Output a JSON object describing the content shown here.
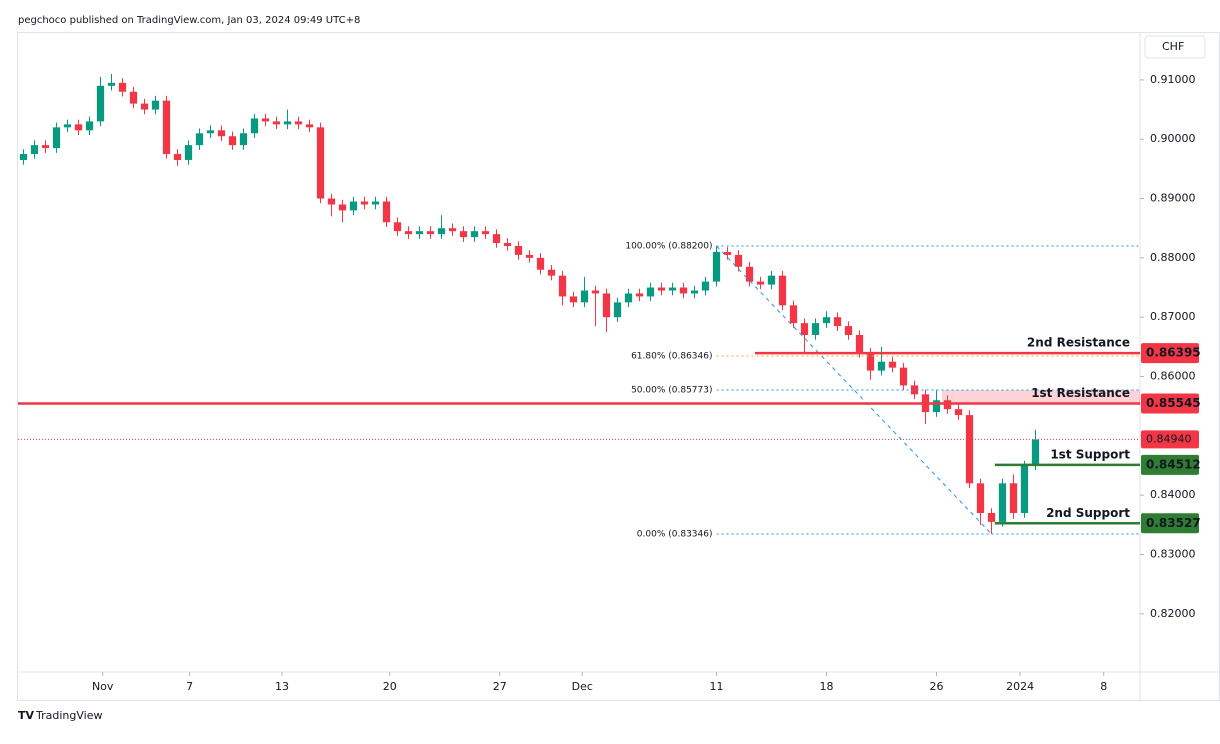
{
  "header": "pegchoco published on TradingView.com, Jan 03, 2024 09:49 UTC+8",
  "footer": "TradingView",
  "chart_data": {
    "type": "candlestick",
    "currency": "CHF",
    "up_color": "#089981",
    "down_color": "#f23645",
    "open": [
      0.8965,
      0.8975,
      0.899,
      0.8985,
      0.902,
      0.9025,
      0.9015,
      0.903,
      0.909,
      0.9095,
      0.908,
      0.906,
      0.905,
      0.9065,
      0.8975,
      0.8965,
      0.899,
      0.901,
      0.9015,
      0.9005,
      0.899,
      0.901,
      0.9035,
      0.903,
      0.9025,
      0.903,
      0.9025,
      0.902,
      0.89,
      0.889,
      0.888,
      0.8895,
      0.889,
      0.8895,
      0.886,
      0.8845,
      0.884,
      0.8845,
      0.884,
      0.885,
      0.8845,
      0.8835,
      0.8845,
      0.884,
      0.8825,
      0.882,
      0.8805,
      0.88,
      0.878,
      0.877,
      0.8735,
      0.8725,
      0.8745,
      0.874,
      0.87,
      0.8725,
      0.874,
      0.8735,
      0.875,
      0.8745,
      0.875,
      0.874,
      0.8745,
      0.876,
      0.881,
      0.8805,
      0.8785,
      0.876,
      0.8755,
      0.877,
      0.872,
      0.869,
      0.867,
      0.869,
      0.87,
      0.8685,
      0.867,
      0.864,
      0.861,
      0.8625,
      0.8615,
      0.8585,
      0.857,
      0.854,
      0.856,
      0.8545,
      0.8535,
      0.842,
      0.837,
      0.8355,
      0.842,
      0.837,
      0.845
    ],
    "high": [
      0.8983,
      0.8998,
      0.8998,
      0.9028,
      0.9033,
      0.9033,
      0.9038,
      0.9105,
      0.911,
      0.9103,
      0.9088,
      0.9068,
      0.9073,
      0.9073,
      0.8983,
      0.8998,
      0.9018,
      0.9023,
      0.9023,
      0.9013,
      0.9018,
      0.9043,
      0.9043,
      0.9038,
      0.905,
      0.9038,
      0.9033,
      0.9028,
      0.8908,
      0.8898,
      0.8903,
      0.8903,
      0.8903,
      0.8903,
      0.8868,
      0.8853,
      0.8853,
      0.8853,
      0.8872,
      0.8858,
      0.8853,
      0.8853,
      0.8853,
      0.8848,
      0.8833,
      0.8828,
      0.8813,
      0.8808,
      0.8788,
      0.8778,
      0.8743,
      0.8768,
      0.8753,
      0.8748,
      0.8733,
      0.8748,
      0.8748,
      0.8758,
      0.8758,
      0.8758,
      0.8758,
      0.8753,
      0.8768,
      0.882,
      0.8818,
      0.8813,
      0.8793,
      0.8768,
      0.8778,
      0.8778,
      0.8728,
      0.8698,
      0.8698,
      0.871,
      0.8708,
      0.8693,
      0.8678,
      0.8648,
      0.865,
      0.8633,
      0.8623,
      0.8593,
      0.8578,
      0.8577,
      0.8568,
      0.8553,
      0.8543,
      0.8428,
      0.8378,
      0.8428,
      0.8435,
      0.8458,
      0.851
    ],
    "low": [
      0.8957,
      0.8967,
      0.8977,
      0.8977,
      0.9012,
      0.9007,
      0.9007,
      0.9022,
      0.9082,
      0.9072,
      0.9052,
      0.9042,
      0.9042,
      0.8967,
      0.8955,
      0.8957,
      0.8982,
      0.9002,
      0.8997,
      0.8982,
      0.8982,
      0.9002,
      0.9022,
      0.9017,
      0.9017,
      0.9017,
      0.9012,
      0.8892,
      0.887,
      0.886,
      0.8872,
      0.8882,
      0.8882,
      0.8852,
      0.8837,
      0.8832,
      0.8832,
      0.8832,
      0.8832,
      0.8837,
      0.8827,
      0.8827,
      0.8832,
      0.8817,
      0.8812,
      0.8797,
      0.8792,
      0.8772,
      0.8762,
      0.872,
      0.8717,
      0.8717,
      0.8685,
      0.8675,
      0.8692,
      0.8717,
      0.8727,
      0.8727,
      0.8737,
      0.8737,
      0.8732,
      0.8732,
      0.8737,
      0.8752,
      0.8797,
      0.8777,
      0.8752,
      0.8747,
      0.8747,
      0.8712,
      0.8682,
      0.864,
      0.8662,
      0.8682,
      0.8677,
      0.8662,
      0.8632,
      0.8595,
      0.8602,
      0.8607,
      0.8577,
      0.8562,
      0.852,
      0.8532,
      0.8537,
      0.8527,
      0.8412,
      0.835,
      0.8335,
      0.8347,
      0.836,
      0.8362,
      0.8442
    ],
    "close": [
      0.8975,
      0.899,
      0.8985,
      0.902,
      0.9025,
      0.9015,
      0.903,
      0.909,
      0.9095,
      0.908,
      0.906,
      0.905,
      0.9065,
      0.8975,
      0.8965,
      0.899,
      0.901,
      0.9015,
      0.9005,
      0.899,
      0.901,
      0.9035,
      0.903,
      0.9025,
      0.903,
      0.9025,
      0.902,
      0.89,
      0.889,
      0.888,
      0.8895,
      0.889,
      0.8895,
      0.886,
      0.8845,
      0.884,
      0.8845,
      0.884,
      0.885,
      0.8845,
      0.8835,
      0.8845,
      0.884,
      0.8825,
      0.882,
      0.8805,
      0.88,
      0.878,
      0.877,
      0.8735,
      0.8725,
      0.8745,
      0.874,
      0.87,
      0.8725,
      0.874,
      0.8735,
      0.875,
      0.8745,
      0.875,
      0.874,
      0.8745,
      0.876,
      0.881,
      0.8805,
      0.8785,
      0.876,
      0.8755,
      0.877,
      0.872,
      0.869,
      0.867,
      0.869,
      0.87,
      0.8685,
      0.867,
      0.864,
      0.861,
      0.8625,
      0.8615,
      0.8585,
      0.857,
      0.854,
      0.856,
      0.8545,
      0.8535,
      0.842,
      0.837,
      0.8355,
      0.842,
      0.837,
      0.845,
      0.8494
    ],
    "xlim": [
      -0.5,
      101.5
    ],
    "xticks": [
      {
        "value": 7.2,
        "label": "Nov"
      },
      {
        "value": 15.1,
        "label": "7"
      },
      {
        "value": 23.5,
        "label": "13"
      },
      {
        "value": 33.3,
        "label": "20"
      },
      {
        "value": 43.3,
        "label": "27"
      },
      {
        "value": 50.8,
        "label": "Dec"
      },
      {
        "value": 63,
        "label": "11"
      },
      {
        "value": 73,
        "label": "18"
      },
      {
        "value": 83,
        "label": "26"
      },
      {
        "value": 90.6,
        "label": "2024"
      },
      {
        "value": 98.2,
        "label": "8"
      }
    ],
    "ylim": [
      0.8102,
      0.9179
    ],
    "yticks": [
      {
        "value": 0.82,
        "label": "0.82000"
      },
      {
        "value": 0.83,
        "label": "0.83000"
      },
      {
        "value": 0.84,
        "label": "0.84000"
      },
      {
        "value": 0.85,
        "label": "0.85000"
      },
      {
        "value": 0.86,
        "label": "0.86000"
      },
      {
        "value": 0.87,
        "label": "0.87000"
      },
      {
        "value": 0.88,
        "label": "0.88000"
      },
      {
        "value": 0.89,
        "label": "0.89000"
      },
      {
        "value": 0.9,
        "label": "0.90000"
      },
      {
        "value": 0.91,
        "label": "0.91000"
      }
    ],
    "levels": [
      {
        "name": "2nd Resistance",
        "value": 0.86395,
        "label": "0.86395",
        "color": "#f23645"
      },
      {
        "name": "1st Resistance",
        "value": 0.85545,
        "label": "0.85545",
        "color": "#f23645"
      },
      {
        "name": "1st Support",
        "value": 0.84512,
        "label": "0.84512",
        "color": "#2e7d32"
      },
      {
        "name": "2nd Support",
        "value": 0.83527,
        "label": "0.83527",
        "color": "#2e7d32"
      }
    ],
    "last_price": {
      "value": 0.8494,
      "label": "0.84940",
      "color": "#f23645"
    },
    "fib_levels": [
      {
        "label": "100.00% (0.88200)",
        "value": 0.882,
        "color": "#2196f3"
      },
      {
        "label": "61.80% (0.86346)",
        "value": 0.86346,
        "color": "#f5a623"
      },
      {
        "label": "50.00% (0.85773)",
        "value": 0.85773,
        "color": "#2196f3"
      },
      {
        "label": "0.00% (0.83346)",
        "value": 0.83346,
        "color": "#2196f3"
      }
    ]
  }
}
